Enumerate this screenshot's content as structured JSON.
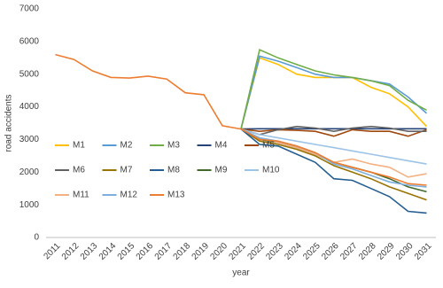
{
  "chart_data": {
    "type": "line",
    "x_label": "year",
    "y_label": "road accidents",
    "categories": [
      "2011",
      "2012",
      "2013",
      "2014",
      "2015",
      "2016",
      "2017",
      "2018",
      "2019",
      "2020",
      "2021",
      "2022",
      "2023",
      "2024",
      "2025",
      "2026",
      "2027",
      "2028",
      "2029",
      "2030",
      "2031"
    ],
    "ylim": [
      0,
      7000
    ],
    "yticks": [
      0,
      1000,
      2000,
      3000,
      4000,
      5000,
      6000,
      7000
    ],
    "grid": false,
    "legend": "lower left",
    "series": [
      {
        "name": "M1",
        "color": "#FFC000",
        "values": [
          null,
          null,
          null,
          null,
          null,
          null,
          null,
          null,
          null,
          null,
          3320,
          5500,
          5300,
          5000,
          4900,
          4900,
          4900,
          4600,
          4400,
          4000,
          3400
        ]
      },
      {
        "name": "M2",
        "color": "#5B9BD5",
        "values": [
          null,
          null,
          null,
          null,
          null,
          null,
          null,
          null,
          null,
          null,
          3320,
          5550,
          5400,
          5200,
          5000,
          4900,
          4900,
          4800,
          4700,
          4300,
          3800
        ]
      },
      {
        "name": "M3",
        "color": "#70AD47",
        "values": [
          null,
          null,
          null,
          null,
          null,
          null,
          null,
          null,
          null,
          null,
          3320,
          5750,
          5500,
          5300,
          5100,
          4980,
          4900,
          4800,
          4650,
          4200,
          3900
        ]
      },
      {
        "name": "M4",
        "color": "#264478",
        "values": [
          null,
          null,
          null,
          null,
          null,
          null,
          null,
          null,
          null,
          null,
          3320,
          3330,
          3330,
          3330,
          3330,
          3330,
          3330,
          3330,
          3330,
          3330,
          3330
        ]
      },
      {
        "name": "M5",
        "color": "#9E480E",
        "values": [
          null,
          null,
          null,
          null,
          null,
          null,
          null,
          null,
          null,
          null,
          3320,
          3250,
          3300,
          3280,
          3250,
          3100,
          3300,
          3250,
          3250,
          3100,
          3300
        ]
      },
      {
        "name": "M6",
        "color": "#636363",
        "values": [
          null,
          null,
          null,
          null,
          null,
          null,
          null,
          null,
          null,
          null,
          3320,
          3150,
          3300,
          3400,
          3350,
          3250,
          3350,
          3400,
          3350,
          3250,
          3250
        ]
      },
      {
        "name": "M7",
        "color": "#997300",
        "values": [
          null,
          null,
          null,
          null,
          null,
          null,
          null,
          null,
          null,
          null,
          3320,
          2950,
          2850,
          2700,
          2500,
          2200,
          2000,
          1800,
          1550,
          1350,
          1150
        ]
      },
      {
        "name": "M8",
        "color": "#255E91",
        "values": [
          null,
          null,
          null,
          null,
          null,
          null,
          null,
          null,
          null,
          null,
          3320,
          2850,
          2800,
          2550,
          2300,
          1800,
          1750,
          1500,
          1250,
          800,
          750
        ]
      },
      {
        "name": "M9",
        "color": "#43682B",
        "values": [
          null,
          null,
          null,
          null,
          null,
          null,
          null,
          null,
          null,
          null,
          3320,
          3000,
          2900,
          2750,
          2550,
          2300,
          2150,
          2000,
          1800,
          1550,
          1400
        ]
      },
      {
        "name": "M10",
        "color": "#9DC3E6",
        "values": [
          null,
          null,
          null,
          null,
          null,
          null,
          null,
          null,
          null,
          null,
          3320,
          3150,
          3050,
          2950,
          2850,
          2750,
          2650,
          2550,
          2450,
          2350,
          2250
        ]
      },
      {
        "name": "M11",
        "color": "#F4B183",
        "values": [
          null,
          null,
          null,
          null,
          null,
          null,
          null,
          null,
          null,
          null,
          3320,
          3050,
          2900,
          2750,
          2550,
          2300,
          2400,
          2250,
          2150,
          1850,
          1950
        ]
      },
      {
        "name": "M12",
        "color": "#7CAFDD",
        "values": [
          null,
          null,
          null,
          null,
          null,
          null,
          null,
          null,
          null,
          null,
          3320,
          3050,
          2950,
          2800,
          2600,
          2250,
          2100,
          1900,
          1700,
          1600,
          1550
        ]
      },
      {
        "name": "M13",
        "color": "#ED7D31",
        "values": [
          5600,
          5450,
          5100,
          4900,
          4880,
          4940,
          4850,
          4430,
          4370,
          3420,
          3320,
          3000,
          2950,
          2800,
          2600,
          2300,
          2150,
          2000,
          1850,
          1650,
          1600
        ]
      }
    ]
  }
}
